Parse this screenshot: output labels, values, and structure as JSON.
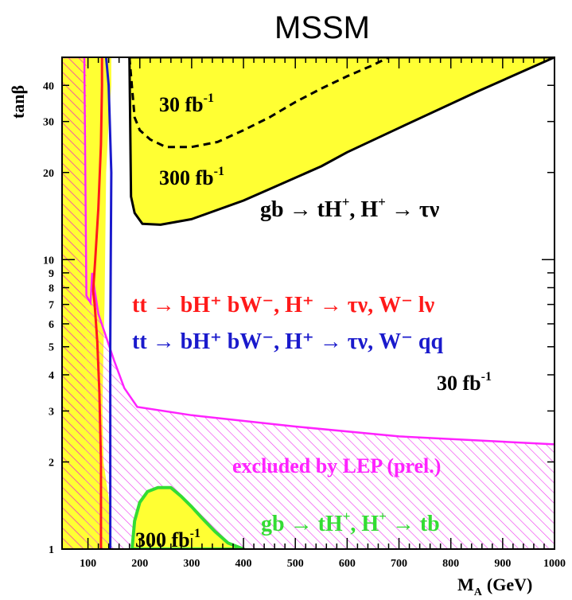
{
  "chart_data": {
    "type": "area",
    "title": "MSSM",
    "xlabel": "M",
    "xlabel_sub": "A",
    "xlabel_unit": "(GeV)",
    "ylabel": "tanβ",
    "x_scale": "linear",
    "y_scale": "log",
    "xlim": [
      50,
      1000
    ],
    "ylim": [
      1,
      50
    ],
    "x_ticks": [
      100,
      200,
      300,
      400,
      500,
      600,
      700,
      800,
      900,
      1000
    ],
    "y_ticks": [
      1,
      2,
      3,
      4,
      5,
      6,
      7,
      8,
      9,
      10,
      20,
      30,
      40
    ],
    "grid": false,
    "colors": {
      "yellow_region": "#ffff33",
      "black_contour": "#000000",
      "red_contour": "#ff1a1a",
      "blue_contour": "#1a1acc",
      "magenta_region": "#ff22ff",
      "green_region": "#33dd33",
      "hatch_orange": "#ff9900"
    },
    "series": [
      {
        "id": "low_mass_yellow",
        "fill": "yellow",
        "x": [
          50,
          50,
          145,
          145,
          140,
          135,
          133,
          132,
          130,
          128,
          130,
          140,
          145,
          50
        ],
        "y": [
          1,
          50,
          50,
          40,
          30,
          20,
          10,
          7,
          5,
          3,
          2,
          1.5,
          1,
          1
        ]
      },
      {
        "id": "gb_tH_300",
        "name": "300 fb",
        "superscript": "-1",
        "fill": "yellow",
        "edge": "black",
        "x": [
          180,
          1000,
          850,
          700,
          600,
          550,
          450,
          400,
          300,
          240,
          205,
          190,
          183,
          180
        ],
        "y": [
          50,
          50,
          38,
          28.5,
          23.5,
          21,
          17.5,
          16,
          13.8,
          13.2,
          13.3,
          14.5,
          16.5,
          50
        ]
      },
      {
        "id": "gb_tH_30",
        "name": "30 fb",
        "superscript": "-1",
        "line": "dashed",
        "x": [
          180,
          190,
          200,
          220,
          250,
          300,
          350,
          400,
          450,
          500,
          550,
          600,
          650,
          680
        ],
        "y": [
          50,
          31,
          28,
          26,
          24.5,
          24.5,
          25.5,
          28,
          31,
          35,
          39,
          43,
          47,
          50
        ]
      },
      {
        "id": "tt_lnu",
        "name": "tt → bH⁺ bW⁻, H⁺ → τν, W⁻ lν",
        "line": "red",
        "x": [
          127,
          127,
          125,
          120,
          114,
          110,
          113,
          118,
          122,
          125,
          125
        ],
        "y": [
          50,
          40,
          25,
          15,
          10,
          7.8,
          7,
          5.2,
          3.5,
          2,
          1
        ]
      },
      {
        "id": "tt_qq",
        "name": "tt → bH⁺ bW⁻, H⁺ → τν, W⁻ qq",
        "line": "blue",
        "x": [
          135,
          140,
          145,
          144,
          143,
          143,
          143
        ],
        "y": [
          50,
          40,
          20,
          10,
          5,
          2,
          1
        ]
      },
      {
        "id": "lep_excluded",
        "name": "excluded by LEP (prel.)",
        "fill": "hatch-magenta",
        "x": [
          50,
          50,
          93,
          97,
          105,
          108,
          120,
          150,
          170,
          195,
          300,
          500,
          700,
          1000,
          1000,
          50
        ],
        "y": [
          1,
          50,
          50,
          7.5,
          7.1,
          9,
          6.5,
          4.5,
          3.6,
          3.1,
          2.9,
          2.65,
          2.45,
          2.3,
          1,
          1
        ]
      },
      {
        "id": "lep_vertical_boundary",
        "fill": "hatch-orange",
        "x": [
          50,
          93,
          95,
          97,
          50
        ],
        "y": [
          1,
          1,
          5,
          50,
          50
        ]
      },
      {
        "id": "gb_tb_300",
        "name": "300 fb",
        "superscript": "-1",
        "fill": "yellow",
        "edge": "green",
        "x": [
          185,
          190,
          200,
          215,
          235,
          260,
          280,
          300,
          320,
          345,
          370,
          400,
          185
        ],
        "y": [
          1,
          1.25,
          1.45,
          1.58,
          1.63,
          1.63,
          1.52,
          1.4,
          1.28,
          1.15,
          1.05,
          1,
          1
        ]
      }
    ],
    "annotations": [
      {
        "text": "30 fb",
        "sup": "-1",
        "color": "black"
      },
      {
        "text": "300 fb",
        "sup": "-1",
        "color": "black"
      },
      {
        "text": "gb → tH",
        "sup": "+",
        "text2": ", H",
        "sup2": "+",
        "text3": " → τν",
        "color": "black"
      },
      {
        "text": "tt → bH⁺ bW⁻, H⁺ → τν, W⁻ lν",
        "color": "red"
      },
      {
        "text": "tt → bH⁺ bW⁻, H⁺ → τν, W⁻ qq",
        "color": "blue"
      },
      {
        "text": "30 fb",
        "sup": "-1",
        "color": "black"
      },
      {
        "text": "excluded by LEP (prel.)",
        "color": "magenta"
      },
      {
        "text": "300 fb",
        "sup": "-1",
        "color": "black"
      },
      {
        "text": "gb → tH",
        "sup": "+",
        "text2": ", H",
        "sup2": "+",
        "text3": " → tb",
        "color": "green"
      }
    ]
  }
}
